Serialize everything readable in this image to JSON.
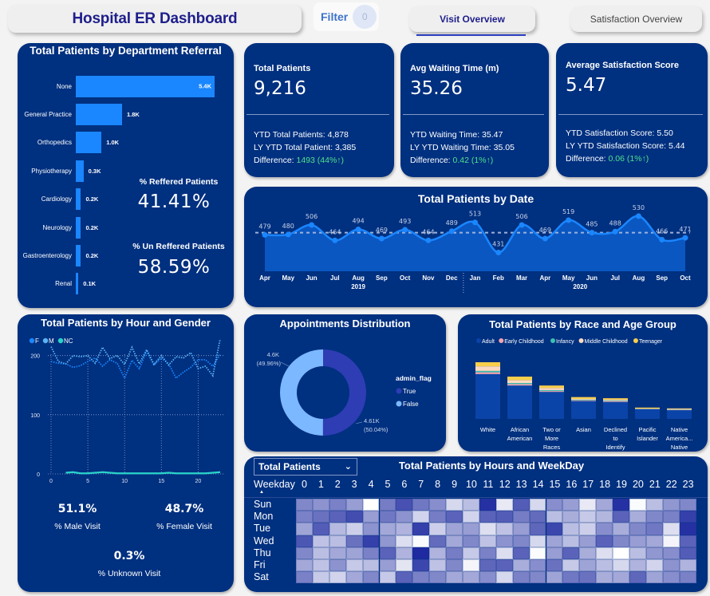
{
  "header": {
    "title": "Hospital ER Dashboard",
    "filter_label": "Filter",
    "filter_count": "0",
    "tabs": [
      {
        "label": "Visit Overview",
        "active": true
      },
      {
        "label": "Satisfaction Overview",
        "active": false
      }
    ]
  },
  "colors": {
    "card_bg": "#003080",
    "page_bg": "#f3f3f3",
    "bar_blue": "#1a86ff",
    "positive_green": "#4ee28c",
    "title_navy": "#1e1e8c"
  },
  "dept_referral": {
    "title": "Total Patients by Department Referral",
    "pct_referred_label": "% Reffered Patients",
    "pct_referred_value": "41.41%",
    "pct_unreferred_label": "% Un Reffered Patients",
    "pct_unreferred_value": "58.59%"
  },
  "kpis": [
    {
      "title": "Total Patients",
      "value": "9,216",
      "ytd": "YTD Total Patients: 4,878",
      "ly_ytd": "LY YTD Total Patient: 3,385",
      "diff_label": "Difference: ",
      "diff_value": "1493 (44%↑)"
    },
    {
      "title": "Avg Waiting Time (m)",
      "value": "35.26",
      "ytd": "YTD Waiting Time: 35.47",
      "ly_ytd": "LY YTD Waiting Time: 35.05",
      "diff_label": "Difference: ",
      "diff_value": "0.42 (1%↑)"
    },
    {
      "title": "Average Satisfaction Score",
      "value": "5.47",
      "ytd": "YTD Satisfaction Score: 5.50",
      "ly_ytd": "LY YTD Satisfaction Score: 5.44",
      "diff_label": "Difference: ",
      "diff_value": "0.06 (1%↑)"
    }
  ],
  "gender_pcts": {
    "male_value": "51.1%",
    "male_label": "% Male Visit",
    "female_value": "48.7%",
    "female_label": "% Female Visit",
    "unknown_value": "0.3%",
    "unknown_label": "% Unknown Visit"
  },
  "heatmap_controls": {
    "metric_select": "Total Patients",
    "weekday_header": "Weekday"
  },
  "chart_data": [
    {
      "id": "dept_referral",
      "type": "bar",
      "orientation": "horizontal",
      "title": "Total Patients by Department Referral",
      "categories": [
        "None",
        "General Practice",
        "Orthopedics",
        "Physiotherapy",
        "Cardiology",
        "Neurology",
        "Gastroenterology",
        "Renal"
      ],
      "values": [
        5400,
        1800,
        1000,
        300,
        200,
        200,
        200,
        100
      ],
      "labels": [
        "5.4K",
        "1.8K",
        "1.0K",
        "0.3K",
        "0.2K",
        "0.2K",
        "0.2K",
        "0.1K"
      ]
    },
    {
      "id": "patients_by_date",
      "type": "area",
      "title": "Total Patients by Date",
      "x": [
        "Apr",
        "May",
        "Jun",
        "Jul",
        "Aug",
        "Sep",
        "Oct",
        "Nov",
        "Dec",
        "Jan",
        "Feb",
        "Mar",
        "Apr",
        "May",
        "Jun",
        "Jul",
        "Aug",
        "Sep",
        "Oct"
      ],
      "year_groups": [
        {
          "label": "2019",
          "count": 9
        },
        {
          "label": "2020",
          "count": 10
        }
      ],
      "values": [
        479,
        480,
        506,
        464,
        494,
        469,
        493,
        464,
        489,
        513,
        431,
        506,
        469,
        519,
        485,
        488,
        530,
        466,
        471
      ],
      "average_line": 485,
      "ylim": [
        380,
        545
      ]
    },
    {
      "id": "hour_gender",
      "type": "line",
      "title": "Total Patients by Hour and Gender",
      "legend": [
        "F",
        "M",
        "NC"
      ],
      "legend_colors": [
        "#1a86ff",
        "#5ab4f5",
        "#2ad3c9"
      ],
      "x": [
        0,
        1,
        2,
        3,
        4,
        5,
        6,
        7,
        8,
        9,
        10,
        11,
        12,
        13,
        14,
        15,
        16,
        17,
        18,
        19,
        20,
        21,
        22,
        23
      ],
      "series": [
        {
          "name": "F",
          "values": [
            190,
            187,
            186,
            180,
            183,
            190,
            196,
            182,
            193,
            187,
            162,
            192,
            178,
            207,
            184,
            196,
            186,
            162,
            172,
            180,
            193,
            193,
            182,
            202
          ]
        },
        {
          "name": "M",
          "values": [
            215,
            190,
            186,
            200,
            198,
            200,
            187,
            214,
            195,
            200,
            185,
            214,
            186,
            210,
            185,
            200,
            184,
            198,
            196,
            205,
            178,
            182,
            166,
            228
          ]
        },
        {
          "name": "NC",
          "values": [
            0,
            0,
            2,
            3,
            1,
            1,
            2,
            3,
            2,
            1,
            1,
            1,
            1,
            1,
            1,
            1,
            2,
            1,
            1,
            1,
            1,
            1,
            2,
            3
          ]
        }
      ],
      "xticks": [
        0,
        5,
        10,
        15,
        20
      ],
      "yticks": [
        0,
        100,
        200
      ],
      "ylim": [
        0,
        240
      ]
    },
    {
      "id": "appointments",
      "type": "pie",
      "donut": true,
      "title": "Appointments Distribution",
      "legend_title": "admin_flag",
      "slices": [
        {
          "name": "True",
          "value": 4610,
          "label": "4.61K",
          "pct_label": "(50.04%)",
          "color": "#2e3db4"
        },
        {
          "name": "False",
          "value": 4600,
          "label": "4.6K",
          "pct_label": "(49.96%)",
          "color": "#7cb8ff"
        }
      ]
    },
    {
      "id": "race_age",
      "type": "bar",
      "stacked": true,
      "title": "Total Patients by Race and Age Group",
      "categories": [
        "White",
        "African American",
        "Two or More Races",
        "Asian",
        "Declined to Identify",
        "Pacific Islander",
        "Native America... Native"
      ],
      "category_lines": [
        [
          "White"
        ],
        [
          "African",
          "American"
        ],
        [
          "Two or",
          "More",
          "Races"
        ],
        [
          "Asian"
        ],
        [
          "Declined",
          "to",
          "Identify"
        ],
        [
          "Pacific",
          "Islander"
        ],
        [
          "Native",
          "America...",
          "Native"
        ]
      ],
      "series": [
        {
          "name": "Adult",
          "color": "#0a44a8",
          "values": [
            1960,
            1460,
            1180,
            780,
            740,
            420,
            380
          ]
        },
        {
          "name": "Early Childhood",
          "color": "#f4a3b0",
          "values": [
            80,
            60,
            40,
            30,
            30,
            10,
            10
          ]
        },
        {
          "name": "Infancy",
          "color": "#3cbfb0",
          "values": [
            60,
            50,
            40,
            25,
            25,
            10,
            10
          ]
        },
        {
          "name": "Middle Childhood",
          "color": "#fcd9c1",
          "values": [
            200,
            130,
            90,
            40,
            50,
            15,
            40
          ]
        },
        {
          "name": "Teenager",
          "color": "#f9cf4a",
          "values": [
            180,
            150,
            110,
            80,
            60,
            40,
            20
          ]
        }
      ]
    },
    {
      "id": "hours_weekday",
      "type": "heatmap",
      "title": "Total Patients by Hours and WeekDay",
      "x": [
        "0",
        "1",
        "2",
        "3",
        "4",
        "5",
        "6",
        "7",
        "8",
        "9",
        "10",
        "11",
        "12",
        "13",
        "14",
        "15",
        "16",
        "17",
        "18",
        "19",
        "20",
        "21",
        "22",
        "23"
      ],
      "y": [
        "Sun",
        "Mon",
        "Tue",
        "Wed",
        "Thu",
        "Fri",
        "Sat"
      ],
      "intensity_scale": "0 = lightest, 1 = darkest",
      "values": [
        [
          0.55,
          0.5,
          0.58,
          0.45,
          0.0,
          0.6,
          0.8,
          0.62,
          0.52,
          0.18,
          0.3,
          0.95,
          0.1,
          0.75,
          0.18,
          0.52,
          0.45,
          0.1,
          0.4,
          0.95,
          0.02,
          0.3,
          0.48,
          0.55
        ],
        [
          0.58,
          0.65,
          0.72,
          0.82,
          0.45,
          0.62,
          0.5,
          0.2,
          0.6,
          0.72,
          0.2,
          0.72,
          0.75,
          0.6,
          0.68,
          0.3,
          0.38,
          0.25,
          0.33,
          0.72,
          0.38,
          0.55,
          0.58,
          0.88
        ],
        [
          0.42,
          0.75,
          0.32,
          0.22,
          0.5,
          0.4,
          0.35,
          0.88,
          0.22,
          0.42,
          0.45,
          0.15,
          0.28,
          0.45,
          0.7,
          0.85,
          0.3,
          0.22,
          0.52,
          0.38,
          0.55,
          0.62,
          0.15,
          0.95
        ],
        [
          0.78,
          0.28,
          0.3,
          0.65,
          0.88,
          0.48,
          0.15,
          0.02,
          0.68,
          0.4,
          0.55,
          0.28,
          0.5,
          0.55,
          0.18,
          0.42,
          0.3,
          0.45,
          0.72,
          0.55,
          0.45,
          0.4,
          0.05,
          0.72
        ],
        [
          0.55,
          0.3,
          0.4,
          0.42,
          0.58,
          0.72,
          0.35,
          0.98,
          0.35,
          0.6,
          0.25,
          0.58,
          0.15,
          0.72,
          0.02,
          0.45,
          0.72,
          0.38,
          0.15,
          0.0,
          0.3,
          0.48,
          0.52,
          0.75
        ],
        [
          0.4,
          0.28,
          0.5,
          0.25,
          0.3,
          0.45,
          0.12,
          0.85,
          0.28,
          0.55,
          0.05,
          0.7,
          0.72,
          0.38,
          0.52,
          0.65,
          0.25,
          0.42,
          0.3,
          0.18,
          0.35,
          0.2,
          0.5,
          0.35
        ],
        [
          0.58,
          0.25,
          0.2,
          0.4,
          0.55,
          0.25,
          0.72,
          0.58,
          0.55,
          0.4,
          0.4,
          0.52,
          0.18,
          0.58,
          0.55,
          0.42,
          0.62,
          0.65,
          0.38,
          0.4,
          0.7,
          0.42,
          0.52,
          0.58
        ]
      ]
    }
  ]
}
